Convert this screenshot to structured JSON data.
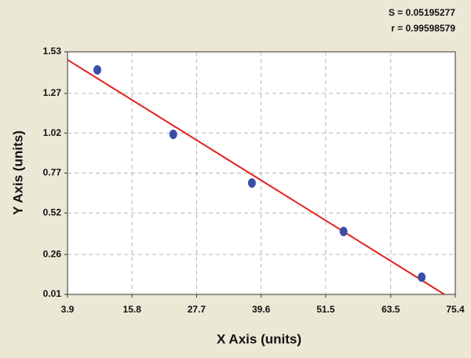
{
  "chart_data": {
    "type": "scatter",
    "x_label": "X Axis (units)",
    "y_label": "Y Axis (units)",
    "annotations": [
      "S = 0.05195277",
      "r = 0.99598579"
    ],
    "x": [
      9.4,
      23.4,
      37.9,
      54.8,
      69.2
    ],
    "values": [
      1.417,
      1.013,
      0.708,
      0.404,
      0.118
    ],
    "color": "#3a4ea6",
    "fit_line": {
      "x": [
        3.9,
        73.4
      ],
      "values": [
        1.48,
        0.01
      ],
      "color": "#e3211b"
    },
    "xlim": [
      3.9,
      75.4
    ],
    "xticks": [
      3.9,
      15.8,
      27.7,
      39.6,
      51.5,
      63.5,
      75.4
    ],
    "ylim": [
      0.01,
      1.53
    ],
    "yticks": [
      0.01,
      0.26,
      0.52,
      0.77,
      1.02,
      1.27,
      1.53
    ],
    "grid": true
  }
}
